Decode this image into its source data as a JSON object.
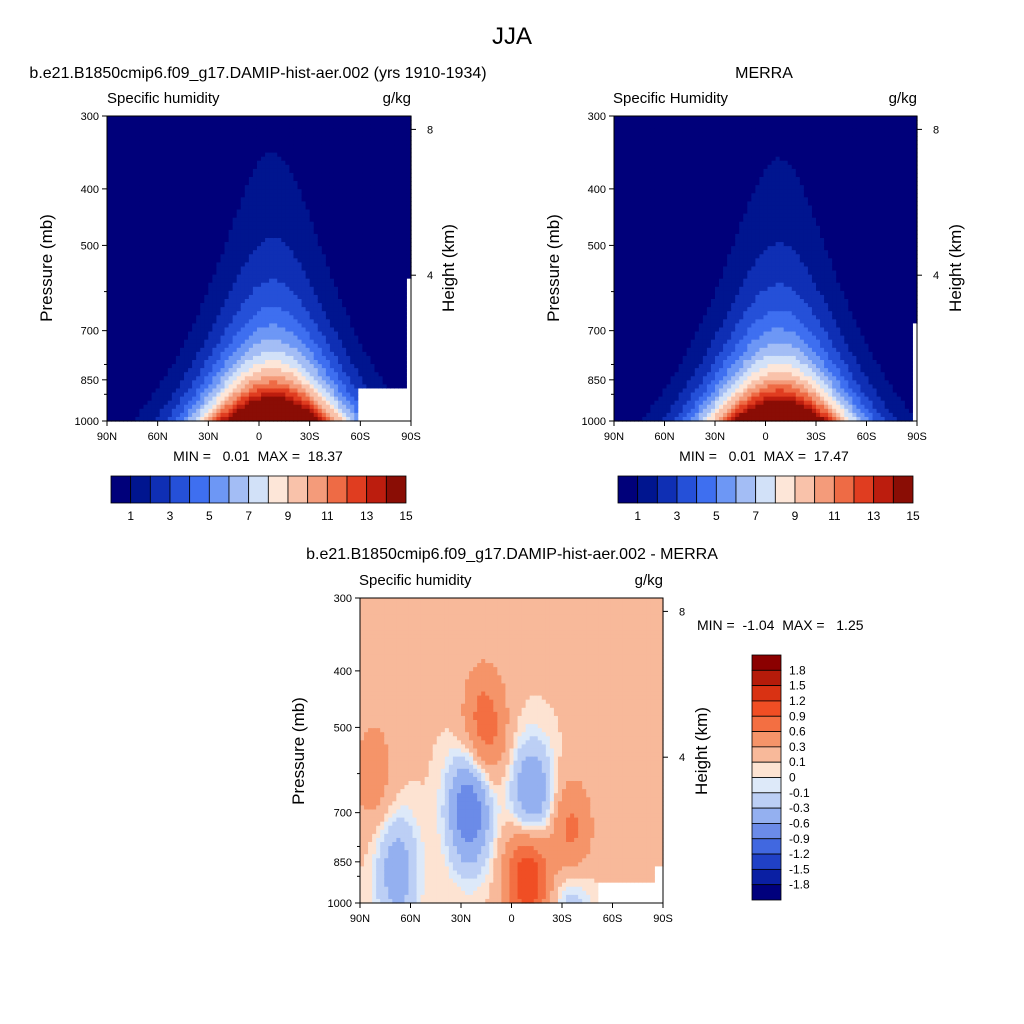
{
  "page": {
    "title": "JJA"
  },
  "chart_data": [
    {
      "type": "heatmap",
      "title": "b.e21.B1850cmip6.f09_g17.DAMIP-hist-aer.002 (yrs 1910-1934)",
      "variable": "Specific humidity",
      "units": "g/kg",
      "ylabel": "Pressure (mb)",
      "ylabel_right": "Height (km)",
      "x_ticks": [
        "90N",
        "60N",
        "30N",
        "0",
        "30S",
        "60S",
        "90S"
      ],
      "y_ticks": [
        "300",
        "400",
        "500",
        "700",
        "850",
        "1000"
      ],
      "y_ticks_right": [
        "8",
        "4"
      ],
      "stats": {
        "min": "0.01",
        "max": "18.37",
        "text": "MIN =   0.01  MAX =  18.37"
      },
      "field": {
        "peak_lat": -8,
        "peak_value": 18.37,
        "surface_width_deg": 42,
        "top_value": 0.01,
        "terrain_mask": [
          "60S-90S near surface"
        ]
      },
      "colorbar": {
        "orientation": "horizontal",
        "labels": [
          "1",
          "3",
          "5",
          "7",
          "9",
          "11",
          "13",
          "15"
        ],
        "levels": [
          1,
          2,
          3,
          4,
          5,
          6,
          7,
          8,
          9,
          10,
          11,
          12,
          13,
          14,
          15
        ]
      }
    },
    {
      "type": "heatmap",
      "title": "MERRA",
      "variable": "Specific Humidity",
      "units": "g/kg",
      "ylabel": "Pressure (mb)",
      "ylabel_right": "Height (km)",
      "x_ticks": [
        "90N",
        "60N",
        "30N",
        "0",
        "30S",
        "60S",
        "90S"
      ],
      "y_ticks": [
        "300",
        "400",
        "500",
        "700",
        "850",
        "1000"
      ],
      "y_ticks_right": [
        "8",
        "4"
      ],
      "stats": {
        "min": "0.01",
        "max": "17.47",
        "text": "MIN =   0.01  MAX =  17.47"
      },
      "field": {
        "peak_lat": -8,
        "peak_value": 17.47,
        "surface_width_deg": 42,
        "top_value": 0.01
      },
      "colorbar": {
        "orientation": "horizontal",
        "labels": [
          "1",
          "3",
          "5",
          "7",
          "9",
          "11",
          "13",
          "15"
        ],
        "levels": [
          1,
          2,
          3,
          4,
          5,
          6,
          7,
          8,
          9,
          10,
          11,
          12,
          13,
          14,
          15
        ]
      }
    },
    {
      "type": "heatmap",
      "title": "b.e21.B1850cmip6.f09_g17.DAMIP-hist-aer.002 - MERRA",
      "variable": "Specific humidity",
      "units": "g/kg",
      "ylabel": "Pressure (mb)",
      "ylabel_right": "Height (km)",
      "x_ticks": [
        "90N",
        "60N",
        "30N",
        "0",
        "30S",
        "60S",
        "90S"
      ],
      "y_ticks": [
        "300",
        "400",
        "500",
        "700",
        "850",
        "1000"
      ],
      "y_ticks_right": [
        "8",
        "4"
      ],
      "stats": {
        "min": "-1.04",
        "max": "1.25",
        "text": "MIN =  -1.04  MAX =   1.25"
      },
      "features": [
        {
          "lat": -10,
          "p": 880,
          "value": 1.25,
          "sign": "positive"
        },
        {
          "lat": -35,
          "p": 800,
          "value": 0.9,
          "sign": "positive"
        },
        {
          "lat": 16,
          "p": 500,
          "value": 0.7,
          "sign": "positive"
        },
        {
          "lat": 25,
          "p": 690,
          "value": -1.04,
          "sign": "negative"
        },
        {
          "lat": -12,
          "p": 680,
          "value": -0.95,
          "sign": "negative"
        },
        {
          "lat": 68,
          "p": 880,
          "value": -0.6,
          "sign": "negative"
        },
        {
          "lat": -35,
          "p": 930,
          "value": -0.7,
          "sign": "negative"
        },
        {
          "lat": 82,
          "p": 600,
          "value": 0.35,
          "sign": "positive"
        }
      ],
      "colorbar": {
        "orientation": "vertical",
        "labels": [
          "1.8",
          "1.5",
          "1.2",
          "0.9",
          "0.6",
          "0.3",
          "0.1",
          "0",
          "-0.1",
          "-0.3",
          "-0.6",
          "-0.9",
          "-1.2",
          "-1.5",
          "-1.8"
        ]
      }
    }
  ],
  "colors": {
    "seq": [
      "#00007a",
      "#00158f",
      "#0f2fb4",
      "#2550d8",
      "#3e6ff0",
      "#6d97f5",
      "#a3bdf5",
      "#d2e1f8",
      "#fde6d8",
      "#f9c2aa",
      "#f49b7a",
      "#ee6b45",
      "#e03d20",
      "#bc1d0e",
      "#8a0d05"
    ],
    "div": [
      "#8b0000",
      "#b51b0a",
      "#d93213",
      "#f04e24",
      "#f36f42",
      "#f59469",
      "#f8b99a",
      "#fde3d2",
      "#dde9f9",
      "#bccff5",
      "#94b0f0",
      "#6b8be8",
      "#4168e0",
      "#2041c6",
      "#0a1fa3",
      "#00007d"
    ]
  }
}
